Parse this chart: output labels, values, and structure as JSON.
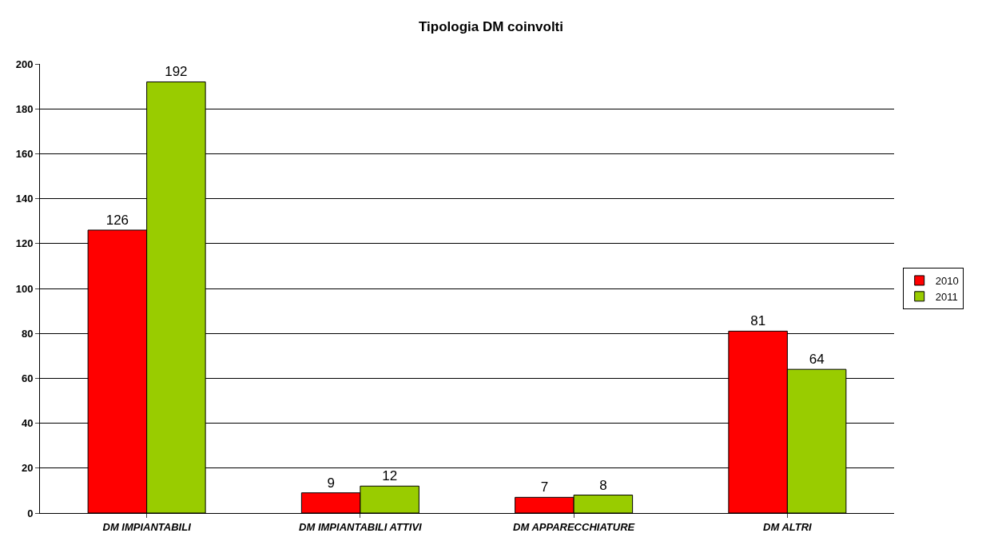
{
  "chart_data": {
    "type": "bar",
    "title": "Tipologia DM coinvolti",
    "categories": [
      "DM IMPIANTABILI",
      "DM IMPIANTABILI ATTIVI",
      "DM APPARECCHIATURE",
      "DM ALTRI"
    ],
    "series": [
      {
        "name": "2010",
        "color": "#ff0000",
        "values": [
          126,
          9,
          7,
          81
        ]
      },
      {
        "name": "2011",
        "color": "#99cc00",
        "values": [
          192,
          12,
          8,
          64
        ]
      }
    ],
    "ylim": [
      0,
      200
    ],
    "yticks": [
      0,
      20,
      40,
      60,
      80,
      100,
      120,
      140,
      160,
      180,
      200
    ],
    "grid": "y",
    "legend": "right",
    "data_labels": true
  }
}
